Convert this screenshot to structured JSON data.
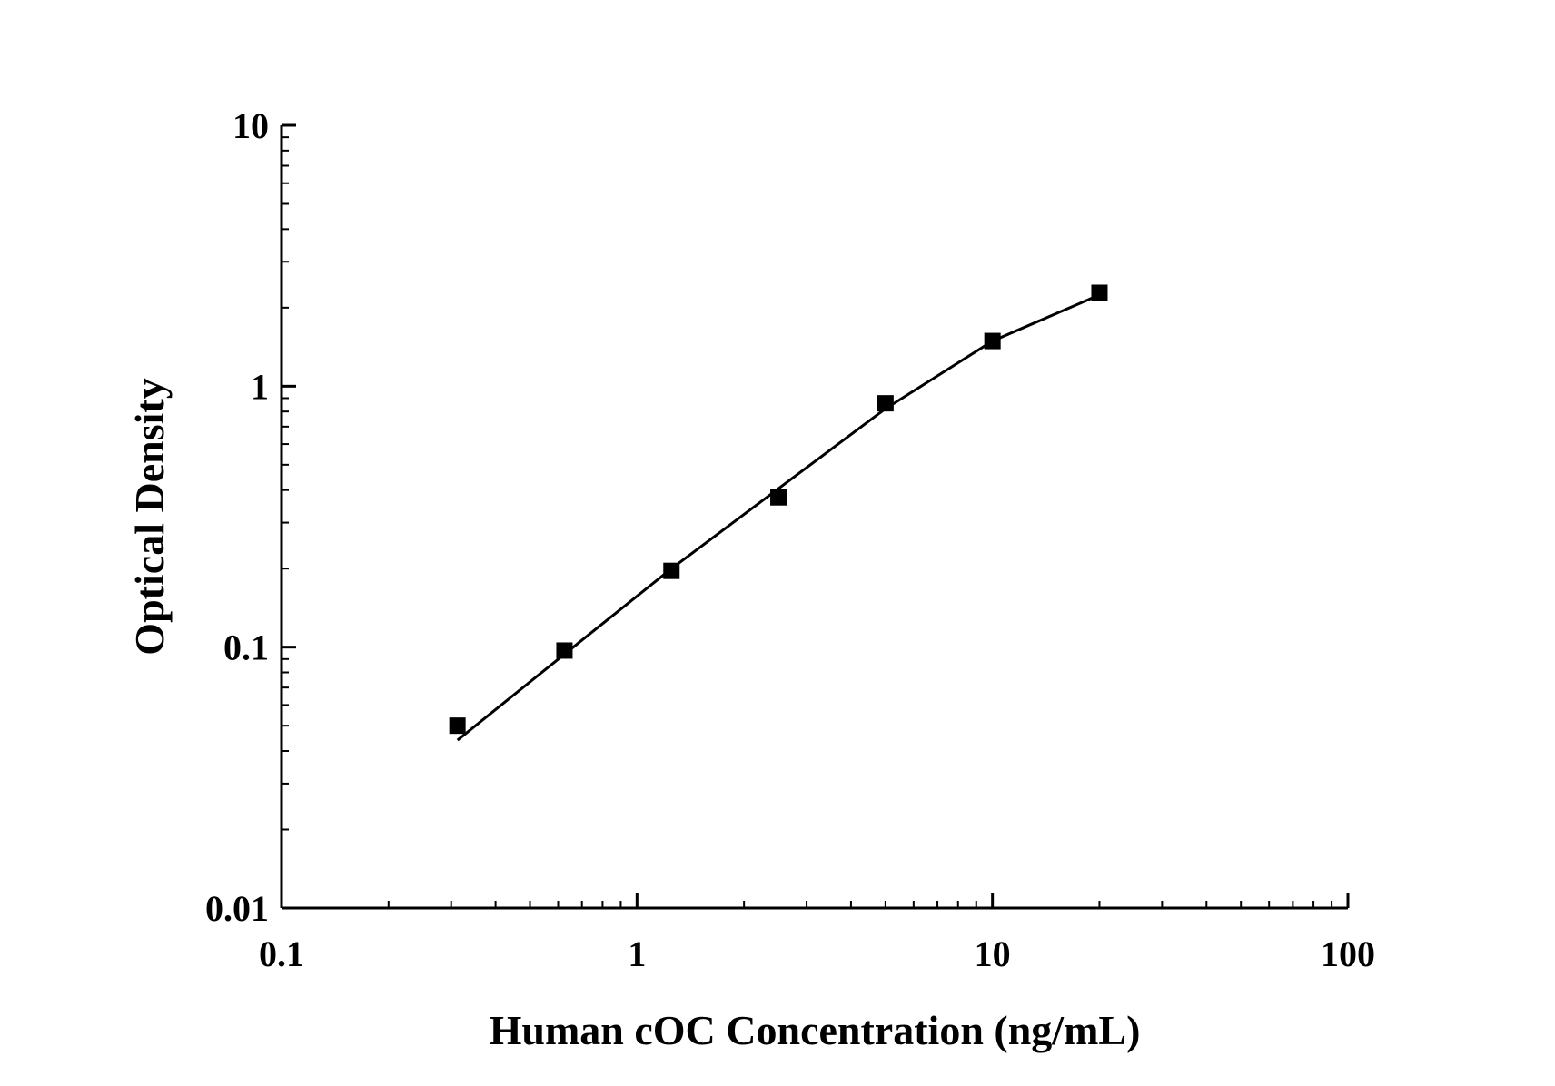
{
  "chart_data": {
    "type": "scatter",
    "title": "",
    "xlabel": "Human cOC Concentration (ng/mL)",
    "ylabel": "Optical Density",
    "xscale": "log",
    "yscale": "log",
    "xlim": [
      0.1,
      100
    ],
    "ylim": [
      0.01,
      10
    ],
    "x_ticks": [
      0.1,
      1,
      10,
      100
    ],
    "x_tick_labels": [
      "0.1",
      "1",
      "10",
      "100"
    ],
    "y_ticks": [
      0.01,
      0.1,
      1,
      10
    ],
    "y_tick_labels": [
      "0.01",
      "0.1",
      "1",
      "10"
    ],
    "grid": false,
    "legend": "none",
    "marker": "square",
    "color": "#000000",
    "series": [
      {
        "x": [
          0.3125,
          0.625,
          1.25,
          2.5,
          5,
          10,
          20
        ],
        "y": [
          0.05,
          0.097,
          0.196,
          0.375,
          0.86,
          1.49,
          2.28
        ]
      }
    ],
    "fit_curve": {
      "x": [
        0.3125,
        0.625,
        1.25,
        2.5,
        5,
        10,
        20
      ],
      "y": [
        0.044,
        0.094,
        0.2,
        0.405,
        0.82,
        1.49,
        2.24
      ]
    }
  }
}
